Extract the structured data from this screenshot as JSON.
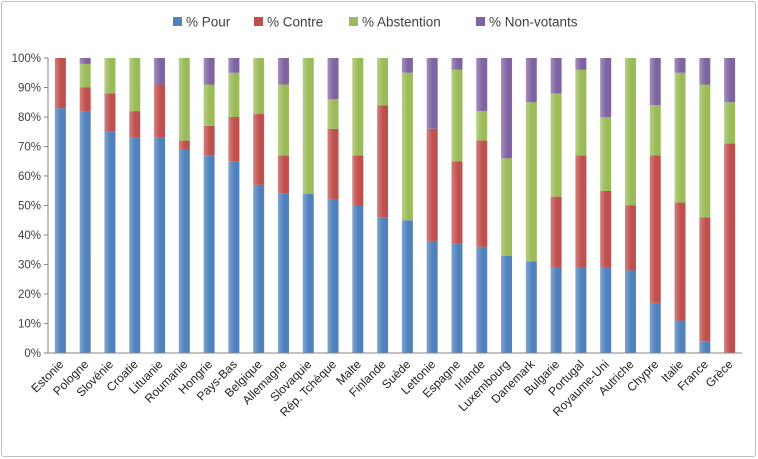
{
  "chart_data": {
    "type": "bar",
    "stacked": true,
    "title": "",
    "xlabel": "",
    "ylabel": "",
    "ylim": [
      0,
      100
    ],
    "yticks": [
      "0%",
      "10%",
      "20%",
      "30%",
      "40%",
      "50%",
      "60%",
      "70%",
      "80%",
      "90%",
      "100%"
    ],
    "grid": false,
    "legend_position": "top",
    "categories": [
      "Estonie",
      "Pologne",
      "Slovénie",
      "Croatie",
      "Lituanie",
      "Roumanie",
      "Hongrie",
      "Pays-Bas",
      "Belgique",
      "Allemagne",
      "Slovaquie",
      "Rép. Tchèque",
      "Malte",
      "Finlande",
      "Suède",
      "Lettonie",
      "Espagne",
      "Irlande",
      "Luxembourg",
      "Danemark",
      "Bulgarie",
      "Portugal",
      "Royaume-Uni",
      "Autriche",
      "Chypre",
      "Italie",
      "France",
      "Grèce"
    ],
    "series": [
      {
        "name": "% Pour",
        "color": "#4f81bd",
        "values": [
          83,
          82,
          75,
          73,
          73,
          69,
          67,
          65,
          57,
          54,
          54,
          52,
          50,
          46,
          45,
          38,
          37,
          36,
          33,
          31,
          29,
          29,
          29,
          28,
          17,
          11,
          4,
          0
        ]
      },
      {
        "name": "% Contre",
        "color": "#c0504d",
        "values": [
          17,
          8,
          13,
          9,
          18,
          3,
          10,
          15,
          24,
          13,
          0,
          24,
          17,
          38,
          0,
          38,
          28,
          36,
          0,
          0,
          24,
          38,
          26,
          22,
          50,
          40,
          42,
          71
        ]
      },
      {
        "name": "% Abstention",
        "color": "#9bbb59",
        "values": [
          0,
          8,
          12,
          18,
          0,
          28,
          14,
          15,
          19,
          24,
          46,
          10,
          33,
          16,
          50,
          0,
          31,
          10,
          33,
          54,
          35,
          29,
          25,
          50,
          17,
          44,
          45,
          14
        ]
      },
      {
        "name": "% Non-votants",
        "color": "#8064a2",
        "values": [
          0,
          2,
          0,
          0,
          9,
          0,
          9,
          5,
          0,
          9,
          0,
          14,
          0,
          0,
          5,
          24,
          4,
          18,
          34,
          15,
          12,
          4,
          20,
          0,
          16,
          5,
          9,
          15
        ]
      }
    ]
  }
}
